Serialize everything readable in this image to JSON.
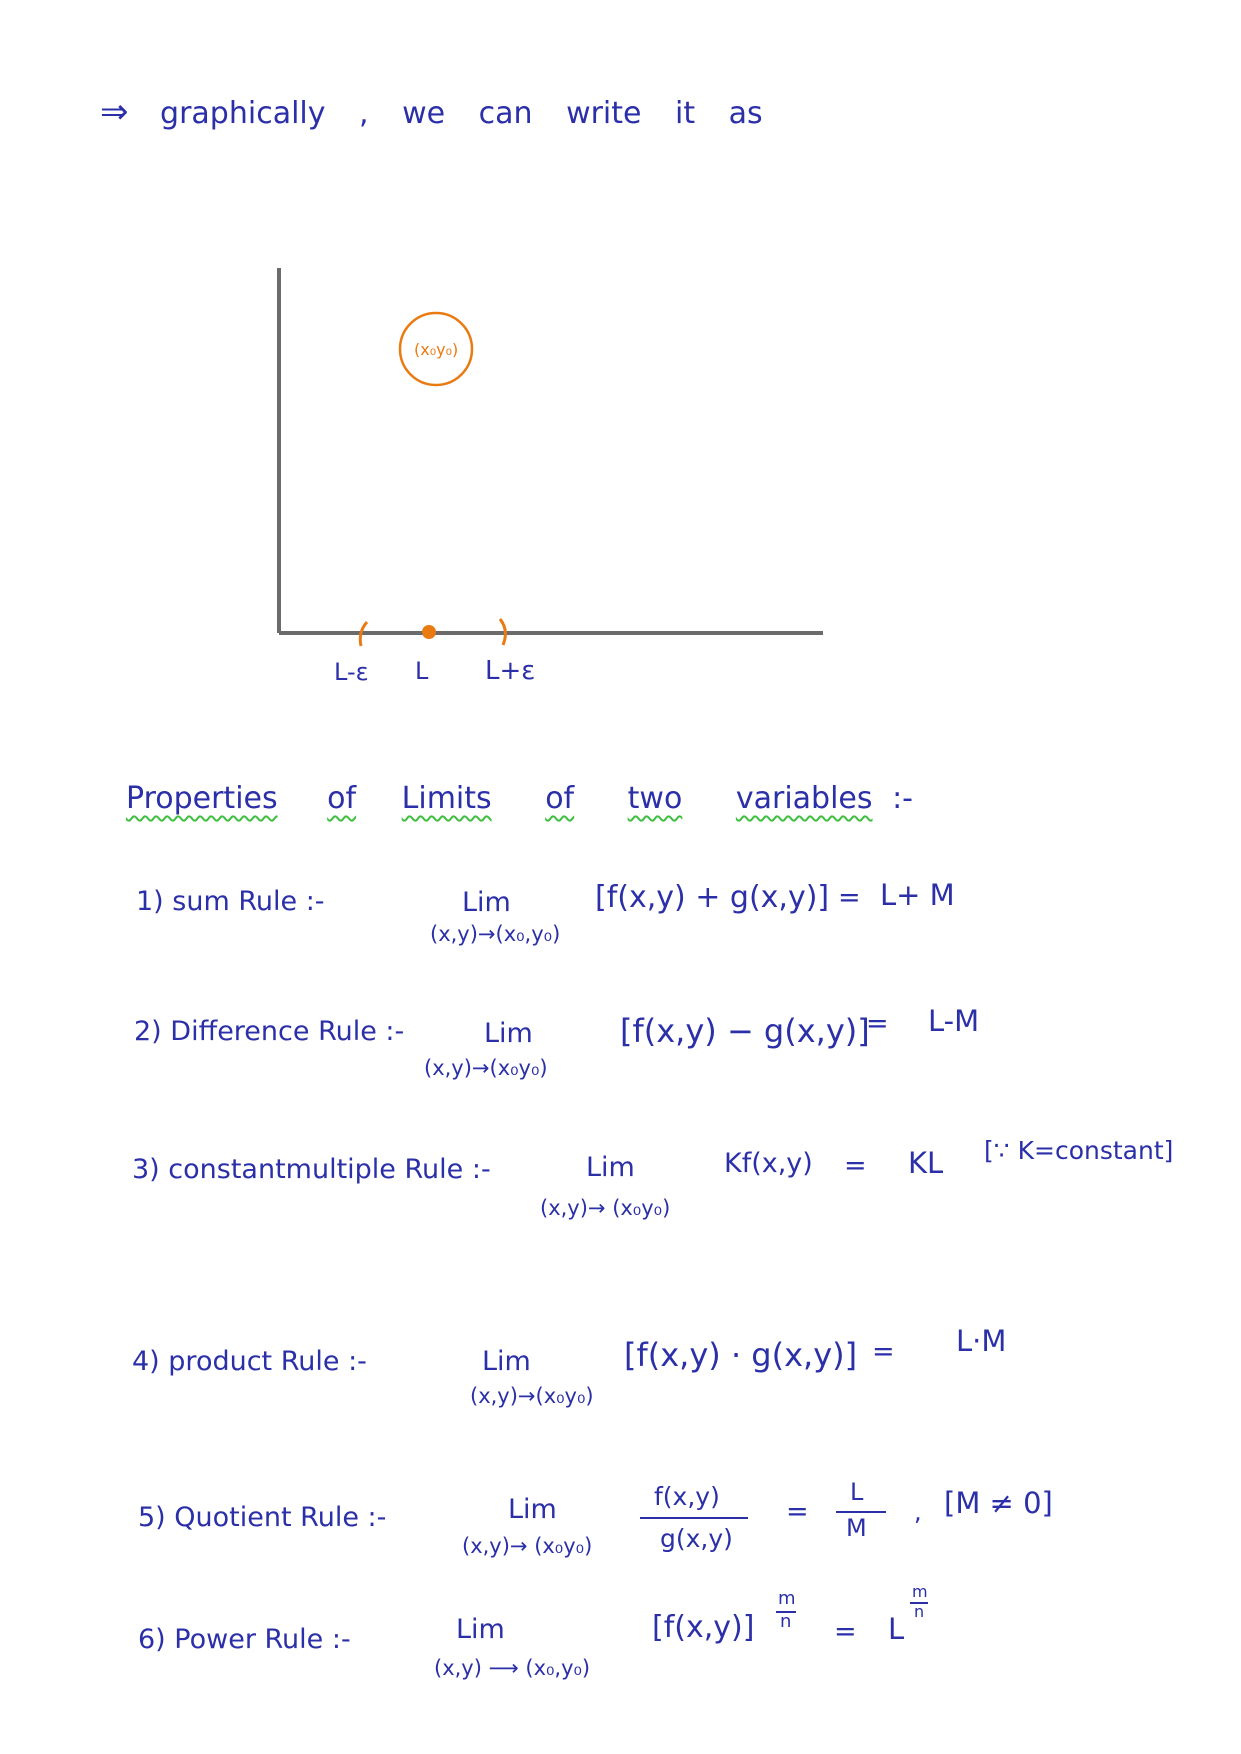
{
  "intro": {
    "arrow": "⇒",
    "text": "graphically , we can write it as"
  },
  "graph": {
    "point_label": "(x₀y₀)",
    "ticks": {
      "left": "L-ε",
      "center": "L",
      "right": "L+ε"
    },
    "colors": {
      "axes": "#6b6b6b",
      "marks": "#ea7a12"
    }
  },
  "heading": {
    "words": [
      "Properties",
      "of",
      "Limits",
      "of",
      "two",
      "variables",
      ":-"
    ]
  },
  "rules": [
    {
      "label": "1) sum Rule :-",
      "lim": "Lim",
      "sub": "(x,y)→(x₀,y₀)",
      "expr": "[f(x,y) + g(x,y)]",
      "eq": "=",
      "rhs": "L+ M"
    },
    {
      "label": "2) Difference Rule :-",
      "lim": "Lim",
      "sub": "(x,y)→(x₀y₀)",
      "expr": "[f(x,y) − g(x,y)]",
      "eq": "=",
      "rhs": "L-M"
    },
    {
      "label": "3) constantmultiple Rule :-",
      "lim": "Lim",
      "sub": "(x,y)→ (x₀y₀)",
      "expr": "Kf(x,y)",
      "eq": "=",
      "rhs": "KL",
      "note": "[∵ K=constant]"
    },
    {
      "label": "4) product Rule :-",
      "lim": "Lim",
      "sub": "(x,y)→(x₀y₀)",
      "expr": "[f(x,y) · g(x,y)]",
      "eq": "=",
      "rhs": "L·M"
    },
    {
      "label": "5) Quotient Rule :-",
      "lim": "Lim",
      "sub": "(x,y)→ (x₀y₀)",
      "numerator": "f(x,y)",
      "denominator": "g(x,y)",
      "eq": "=",
      "rhs_num": "L",
      "rhs_den": "M",
      "comma": ",",
      "note": "[M ≠ 0]"
    },
    {
      "label": "6) Power Rule :-",
      "lim": "Lim",
      "sub": "(x,y) ⟶ (x₀,y₀)",
      "expr": "[f(x,y)]",
      "exp_num": "m",
      "exp_den": "n",
      "eq": "=",
      "rhs_base": "L",
      "rhs_exp_num": "m",
      "rhs_exp_den": "n"
    }
  ]
}
